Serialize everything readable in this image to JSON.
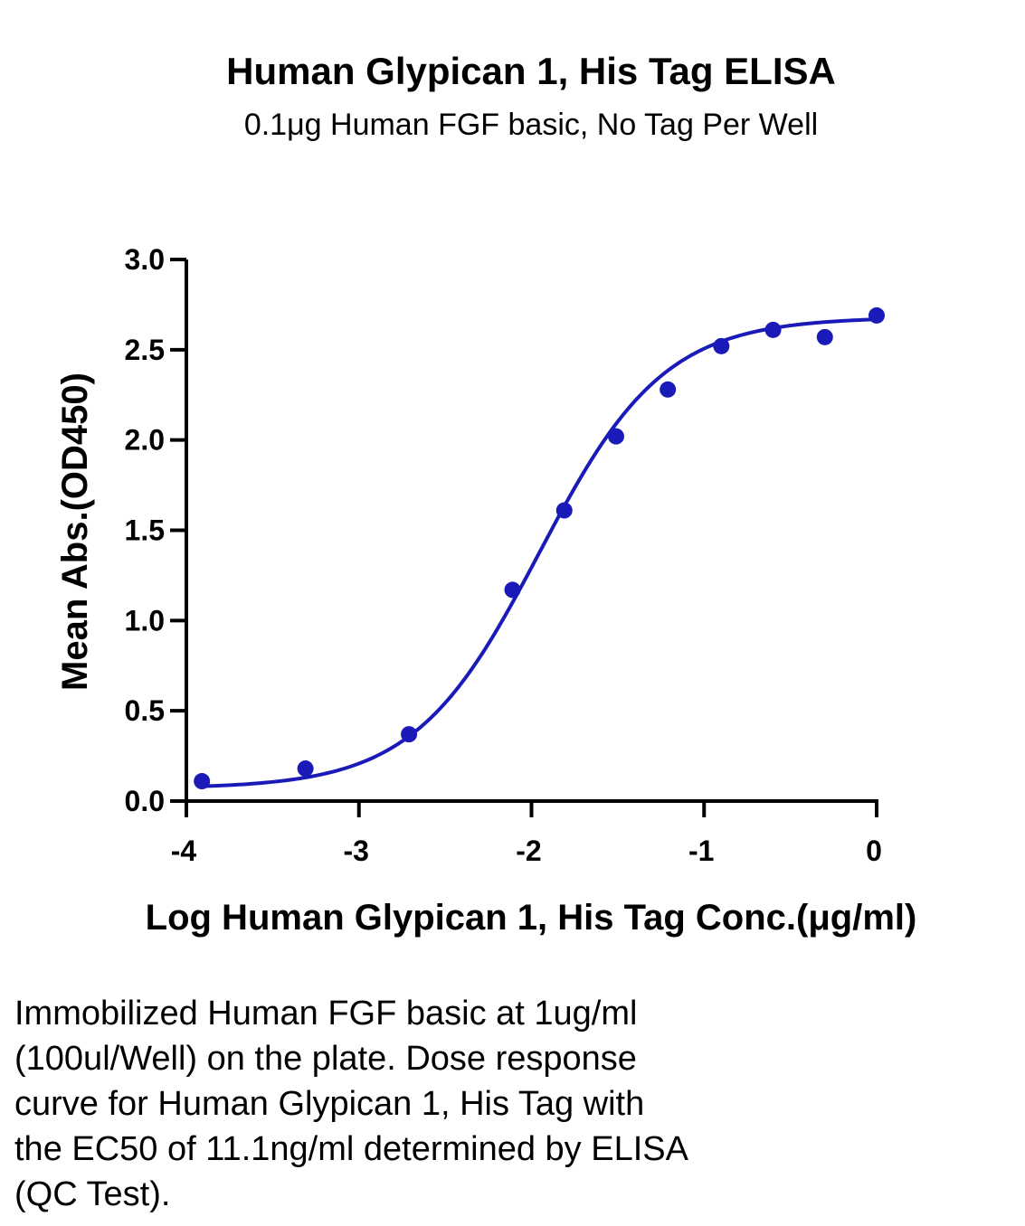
{
  "chart_data": {
    "type": "scatter",
    "title": "Human Glypican 1, His Tag ELISA",
    "subtitle": "0.1μg Human FGF basic, No Tag Per Well",
    "xlabel": "Log Human Glypican 1, His Tag Conc.(μg/ml)",
    "ylabel": "Mean Abs.(OD450)",
    "xlim": [
      -4,
      0
    ],
    "ylim": [
      0,
      3
    ],
    "x_ticks": [
      -4,
      -3,
      -2,
      -1,
      0
    ],
    "x_tick_labels": [
      "-4",
      "-3",
      "-2",
      "-1",
      "0"
    ],
    "y_ticks": [
      0,
      0.5,
      1,
      1.5,
      2,
      2.5,
      3
    ],
    "y_tick_labels": [
      "0.0",
      "0.5",
      "1.0",
      "1.5",
      "2.0",
      "2.5",
      "3.0"
    ],
    "grid": false,
    "series": [
      {
        "color": "#1a1ab8",
        "points": [
          {
            "x": -3.91,
            "y": 0.11
          },
          {
            "x": -3.31,
            "y": 0.18
          },
          {
            "x": -2.71,
            "y": 0.37
          },
          {
            "x": -2.11,
            "y": 1.17
          },
          {
            "x": -1.81,
            "y": 1.61
          },
          {
            "x": -1.51,
            "y": 2.02
          },
          {
            "x": -1.21,
            "y": 2.28
          },
          {
            "x": -0.9,
            "y": 2.52
          },
          {
            "x": -0.6,
            "y": 2.61
          },
          {
            "x": -0.3,
            "y": 2.57
          },
          {
            "x": 0.0,
            "y": 2.69
          }
        ],
        "fit_curve": {
          "model": "4PL",
          "bottom": 0.07,
          "top": 2.68,
          "log_ec50": -1.955,
          "hill_slope": 1.2
        }
      }
    ]
  },
  "caption": {
    "line1": "Immobilized Human FGF basic at 1ug/ml",
    "line2": "(100ul/Well) on the plate. Dose response",
    "line3": "curve for Human Glypican 1, His Tag with",
    "line4": "the EC50 of 11.1ng/ml determined by ELISA",
    "line5": "(QC Test)."
  }
}
